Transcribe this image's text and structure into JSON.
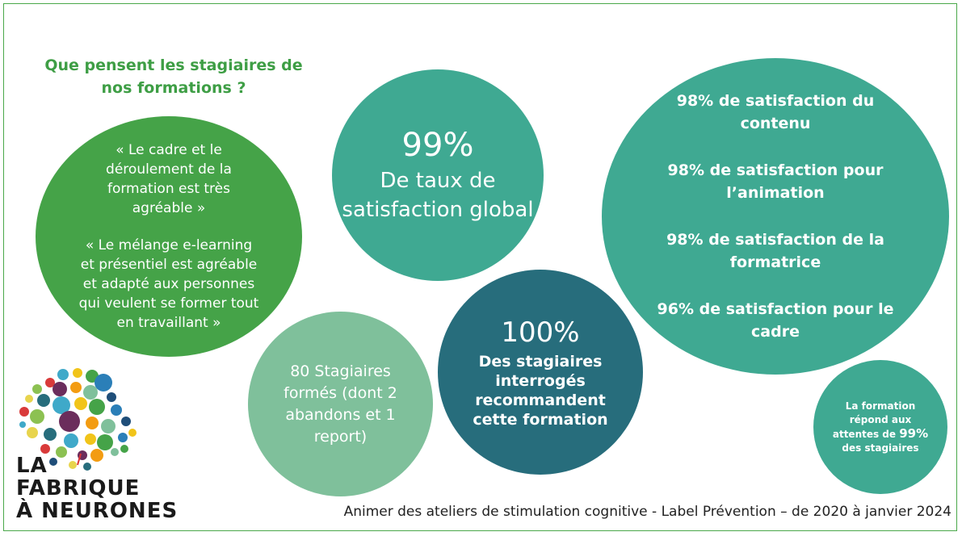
{
  "heading": "Que pensent les stagiaires de nos formations ?",
  "quotes": [
    "« Le cadre et le déroulement de la formation est très agréable »",
    "« Le mélange e-learning et présentiel est agréable et adapté aux personnes qui veulent se former tout en travaillant »"
  ],
  "global": {
    "value": "99%",
    "label": "De taux de satisfaction global"
  },
  "count": {
    "label": "80 Stagiaires formés (dont 2 abandons et 1 report)"
  },
  "recommend": {
    "value": "100%",
    "label": "Des stagiaires interrogés recommandent cette formation"
  },
  "stats": [
    {
      "pct": "98%",
      "label": "de satisfaction du contenu"
    },
    {
      "pct": "98%",
      "label": "de satisfaction pour l’animation"
    },
    {
      "pct": "98%",
      "label": "de satisfaction de la formatrice"
    },
    {
      "pct": "96%",
      "label": "de satisfaction pour le cadre"
    }
  ],
  "expectations": {
    "before": "La formation répond aux attentes de",
    "pct": "99%",
    "after": "des stagiaires"
  },
  "footer": "Animer des ateliers de stimulation cognitive - Label Prévention – de 2020 à janvier 2024",
  "logo": {
    "line1": "LA",
    "line2": "FABRIQUE",
    "line3": "À NEURONES"
  },
  "colors": {
    "green": "#45a348",
    "teal": "#3fa992",
    "light_green": "#7fc09b",
    "dark_teal": "#276d7c"
  }
}
